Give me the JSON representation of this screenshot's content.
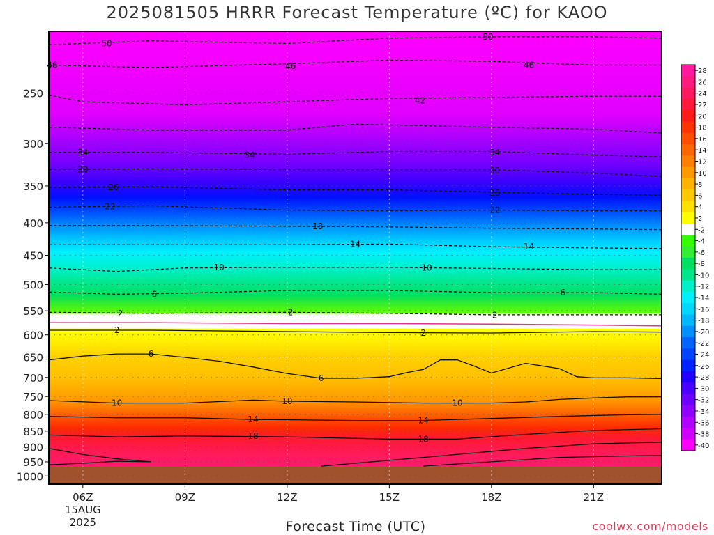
{
  "header": {
    "title": "2025081505 HRRR Forecast Temperature (ºC) for KAOO"
  },
  "footer": {
    "xlabel": "Forecast Time (UTC)",
    "credit": "coolwx.com/models"
  },
  "chart_data": {
    "type": "heatmap",
    "title": "2025081505 HRRR Forecast Temperature (ºC) for KAOO",
    "xlabel": "Forecast Time (UTC)",
    "ylabel": "",
    "x_ticks": [
      {
        "hour": 6,
        "label": "06Z"
      },
      {
        "hour": 9,
        "label": "09Z"
      },
      {
        "hour": 12,
        "label": "12Z"
      },
      {
        "hour": 15,
        "label": "15Z"
      },
      {
        "hour": 18,
        "label": "18Z"
      },
      {
        "hour": 21,
        "label": "21Z"
      }
    ],
    "x_date_label": [
      "15AUG",
      "2025"
    ],
    "xlim": [
      5,
      23
    ],
    "y_ticks": [
      250,
      300,
      350,
      400,
      450,
      500,
      550,
      600,
      650,
      700,
      750,
      800,
      850,
      900,
      950,
      1000
    ],
    "ylim_hpa": [
      1030,
      200
    ],
    "y_scale": "log-pressure",
    "surface_pressure_hpa": 967,
    "colorbar": {
      "labels": [
        "28",
        "26",
        "24",
        "22",
        "20",
        "18",
        "16",
        "14",
        "12",
        "10",
        "8",
        "6",
        "4",
        "2",
        "-2",
        "-4",
        "-6",
        "-8",
        "-10",
        "-12",
        "-14",
        "-16",
        "-18",
        "-20",
        "-22",
        "-24",
        "-26",
        "-28",
        "-30",
        "-32",
        "-34",
        "-36",
        "-38",
        "-40"
      ],
      "colors": [
        "#ff1aa0",
        "#ff1a80",
        "#ff1a60",
        "#ff1a3c",
        "#ff1a1a",
        "#ff3300",
        "#ff4d00",
        "#ff6600",
        "#ff8000",
        "#ff9900",
        "#ffb300",
        "#ffc800",
        "#ffe000",
        "#ffff00",
        "#ffffff",
        "#33ff00",
        "#33ee33",
        "#00e060",
        "#00e68a",
        "#00f0c8",
        "#00f0ff",
        "#00d8ff",
        "#00b8ff",
        "#0090ff",
        "#0066ff",
        "#0044ff",
        "#0022ff",
        "#2200ff",
        "#4a00ff",
        "#6e00ff",
        "#9000ff",
        "#b000ff",
        "#d000ff",
        "#ff00ff"
      ]
    },
    "isotherms": [
      {
        "value": -50,
        "label": "50",
        "style": "dashed",
        "points": [
          [
            5,
            210
          ],
          [
            8,
            207
          ],
          [
            12,
            209
          ],
          [
            15,
            205
          ],
          [
            18,
            204
          ],
          [
            21,
            204
          ],
          [
            23,
            205
          ]
        ]
      },
      {
        "value": -46,
        "label": "46",
        "style": "dashed",
        "points": [
          [
            5,
            226
          ],
          [
            8,
            228
          ],
          [
            12,
            225
          ],
          [
            15,
            222
          ],
          [
            18,
            223
          ],
          [
            21,
            226
          ],
          [
            23,
            226
          ]
        ]
      },
      {
        "value": -42,
        "label": "42",
        "style": "dashed",
        "points": [
          [
            5,
            252
          ],
          [
            6,
            258
          ],
          [
            9,
            261
          ],
          [
            12,
            258
          ],
          [
            15,
            255
          ],
          [
            18,
            254
          ],
          [
            21,
            253
          ],
          [
            23,
            253
          ]
        ]
      },
      {
        "value": -38,
        "label": "",
        "style": "dashed",
        "points": [
          [
            5,
            283
          ],
          [
            8,
            286
          ],
          [
            12,
            286
          ],
          [
            14,
            280
          ],
          [
            18,
            283
          ],
          [
            21,
            285
          ],
          [
            23,
            289
          ]
        ]
      },
      {
        "value": -34,
        "label": "34",
        "style": "dashed",
        "points": [
          [
            5,
            310
          ],
          [
            8,
            310
          ],
          [
            12,
            312
          ],
          [
            15,
            309
          ],
          [
            18,
            309
          ],
          [
            21,
            313
          ],
          [
            23,
            315
          ]
        ]
      },
      {
        "value": -30,
        "label": "30",
        "style": "dashed",
        "points": [
          [
            5,
            330
          ],
          [
            8,
            329
          ],
          [
            12,
            330
          ],
          [
            15,
            330
          ],
          [
            18,
            330
          ],
          [
            21,
            334
          ],
          [
            23,
            338
          ]
        ]
      },
      {
        "value": -26,
        "label": "26",
        "style": "dashed",
        "points": [
          [
            5,
            352
          ],
          [
            8,
            351
          ],
          [
            12,
            355
          ],
          [
            15,
            355
          ],
          [
            18,
            358
          ],
          [
            21,
            361
          ],
          [
            23,
            362
          ]
        ]
      },
      {
        "value": -22,
        "label": "22",
        "style": "dashed",
        "points": [
          [
            5,
            378
          ],
          [
            8,
            376
          ],
          [
            12,
            382
          ],
          [
            15,
            383
          ],
          [
            18,
            382
          ],
          [
            21,
            383
          ],
          [
            23,
            383
          ]
        ]
      },
      {
        "value": -18,
        "label": "18",
        "style": "dashed",
        "points": [
          [
            5,
            404
          ],
          [
            8,
            404
          ],
          [
            12,
            405
          ],
          [
            15,
            406
          ],
          [
            18,
            408
          ],
          [
            21,
            409
          ],
          [
            23,
            410
          ]
        ]
      },
      {
        "value": -14,
        "label": "14",
        "style": "dashed",
        "points": [
          [
            5,
            433
          ],
          [
            8,
            433
          ],
          [
            12,
            433
          ],
          [
            15,
            432
          ],
          [
            18,
            436
          ],
          [
            21,
            438
          ],
          [
            23,
            439
          ]
        ]
      },
      {
        "value": -10,
        "label": "10",
        "style": "dashed",
        "points": [
          [
            5,
            471
          ],
          [
            7,
            477
          ],
          [
            9,
            471
          ],
          [
            12,
            470
          ],
          [
            15,
            470
          ],
          [
            18,
            472
          ],
          [
            21,
            474
          ],
          [
            23,
            474
          ]
        ]
      },
      {
        "value": -6,
        "label": "6",
        "style": "dashed",
        "points": [
          [
            5,
            514
          ],
          [
            7,
            518
          ],
          [
            9,
            516
          ],
          [
            12,
            511
          ],
          [
            15,
            511
          ],
          [
            18,
            515
          ],
          [
            21,
            515
          ],
          [
            23,
            518
          ]
        ]
      },
      {
        "value": -2,
        "label": "2",
        "style": "dashed",
        "points": [
          [
            5,
            553
          ],
          [
            8,
            555
          ],
          [
            12,
            553
          ],
          [
            15,
            555
          ],
          [
            18,
            558
          ],
          [
            21,
            558
          ],
          [
            23,
            558
          ]
        ]
      },
      {
        "value": 0,
        "label": "",
        "style": "freezing",
        "points": [
          [
            5,
            574
          ],
          [
            8,
            574
          ],
          [
            12,
            576
          ],
          [
            15,
            576
          ],
          [
            18,
            577
          ],
          [
            21,
            579
          ],
          [
            23,
            581
          ]
        ]
      },
      {
        "value": 2,
        "label": "2",
        "style": "solid",
        "points": [
          [
            5,
            590
          ],
          [
            8,
            590
          ],
          [
            12,
            593
          ],
          [
            15,
            595
          ],
          [
            18,
            596
          ],
          [
            21,
            593
          ],
          [
            23,
            594
          ]
        ]
      },
      {
        "value": 6,
        "label": "6",
        "style": "solid",
        "points": [
          [
            5,
            657
          ],
          [
            6,
            648
          ],
          [
            7,
            643
          ],
          [
            8,
            643
          ],
          [
            9,
            651
          ],
          [
            10,
            660
          ],
          [
            11,
            674
          ],
          [
            12,
            690
          ],
          [
            13,
            702
          ],
          [
            14,
            702
          ],
          [
            15,
            698
          ],
          [
            15.5,
            688
          ],
          [
            16,
            680
          ],
          [
            16.5,
            657
          ],
          [
            17,
            657
          ],
          [
            17.5,
            672
          ],
          [
            18,
            689
          ],
          [
            19,
            665
          ],
          [
            20,
            678
          ],
          [
            20.5,
            698
          ],
          [
            21,
            701
          ],
          [
            22,
            701
          ],
          [
            23,
            703
          ]
        ]
      },
      {
        "value": 10,
        "label": "10",
        "style": "solid",
        "points": [
          [
            5,
            761
          ],
          [
            7,
            768
          ],
          [
            9,
            768
          ],
          [
            11,
            760
          ],
          [
            12,
            763
          ],
          [
            14,
            765
          ],
          [
            16,
            768
          ],
          [
            18,
            768
          ],
          [
            19,
            765
          ],
          [
            20,
            758
          ],
          [
            21,
            754
          ],
          [
            22,
            751
          ],
          [
            23,
            751
          ]
        ]
      },
      {
        "value": 14,
        "label": "14",
        "style": "solid",
        "points": [
          [
            5,
            806
          ],
          [
            7,
            810
          ],
          [
            9,
            810
          ],
          [
            11,
            815
          ],
          [
            14,
            818
          ],
          [
            16,
            818
          ],
          [
            18,
            812
          ],
          [
            20,
            806
          ],
          [
            22,
            801
          ],
          [
            23,
            800
          ]
        ]
      },
      {
        "value": 18,
        "label": "18",
        "style": "solid",
        "points": [
          [
            5,
            862
          ],
          [
            7,
            868
          ],
          [
            9,
            865
          ],
          [
            12,
            868
          ],
          [
            15,
            875
          ],
          [
            17,
            875
          ],
          [
            19,
            860
          ],
          [
            21,
            848
          ],
          [
            23,
            843
          ]
        ]
      },
      {
        "value": 22,
        "label": "",
        "style": "solid",
        "points": [
          [
            5,
            905
          ],
          [
            6,
            925
          ],
          [
            7,
            940
          ],
          [
            8,
            950
          ],
          [
            7,
            948
          ],
          [
            6,
            955
          ],
          [
            5,
            960
          ]
        ]
      },
      {
        "value": 22,
        "label": "",
        "style": "solid",
        "points": [
          [
            13,
            965
          ],
          [
            16,
            935
          ],
          [
            19,
            905
          ],
          [
            21,
            890
          ],
          [
            23,
            885
          ]
        ]
      },
      {
        "value": 26,
        "label": "",
        "style": "solid",
        "points": [
          [
            16,
            965
          ],
          [
            18,
            950
          ],
          [
            20,
            935
          ],
          [
            22,
            930
          ],
          [
            23,
            928
          ]
        ]
      }
    ],
    "contour_labels": [
      {
        "text": "50",
        "x": 6.7,
        "p": 209
      },
      {
        "text": "50",
        "x": 17.9,
        "p": 204
      },
      {
        "text": "46",
        "x": 5.1,
        "p": 226
      },
      {
        "text": "46",
        "x": 12.1,
        "p": 227
      },
      {
        "text": "46",
        "x": 19.1,
        "p": 226
      },
      {
        "text": "42",
        "x": 15.9,
        "p": 257
      },
      {
        "text": "34",
        "x": 6.0,
        "p": 310
      },
      {
        "text": "34",
        "x": 10.9,
        "p": 313
      },
      {
        "text": "34",
        "x": 18.1,
        "p": 310
      },
      {
        "text": "30",
        "x": 6.0,
        "p": 330
      },
      {
        "text": "30",
        "x": 18.1,
        "p": 331
      },
      {
        "text": "26",
        "x": 6.9,
        "p": 352
      },
      {
        "text": "26",
        "x": 18.1,
        "p": 359
      },
      {
        "text": "22",
        "x": 6.8,
        "p": 377
      },
      {
        "text": "22",
        "x": 18.1,
        "p": 382
      },
      {
        "text": "18",
        "x": 12.9,
        "p": 405
      },
      {
        "text": "14",
        "x": 14.0,
        "p": 432
      },
      {
        "text": "14",
        "x": 19.1,
        "p": 436
      },
      {
        "text": "10",
        "x": 10.0,
        "p": 470
      },
      {
        "text": "10",
        "x": 16.1,
        "p": 471
      },
      {
        "text": "6",
        "x": 8.1,
        "p": 518
      },
      {
        "text": "6",
        "x": 20.1,
        "p": 515
      },
      {
        "text": "2",
        "x": 7.1,
        "p": 555
      },
      {
        "text": "2",
        "x": 12.1,
        "p": 553
      },
      {
        "text": "2",
        "x": 18.1,
        "p": 559
      },
      {
        "text": "2",
        "x": 7.0,
        "p": 590
      },
      {
        "text": "2",
        "x": 16.0,
        "p": 596
      },
      {
        "text": "6",
        "x": 8.0,
        "p": 643
      },
      {
        "text": "6",
        "x": 13.0,
        "p": 702
      },
      {
        "text": "10",
        "x": 7.0,
        "p": 768
      },
      {
        "text": "10",
        "x": 12.0,
        "p": 763
      },
      {
        "text": "10",
        "x": 17.0,
        "p": 768
      },
      {
        "text": "14",
        "x": 11.0,
        "p": 815
      },
      {
        "text": "14",
        "x": 16.0,
        "p": 818
      },
      {
        "text": "18",
        "x": 11.0,
        "p": 866
      },
      {
        "text": "18",
        "x": 16.0,
        "p": 875
      }
    ]
  }
}
